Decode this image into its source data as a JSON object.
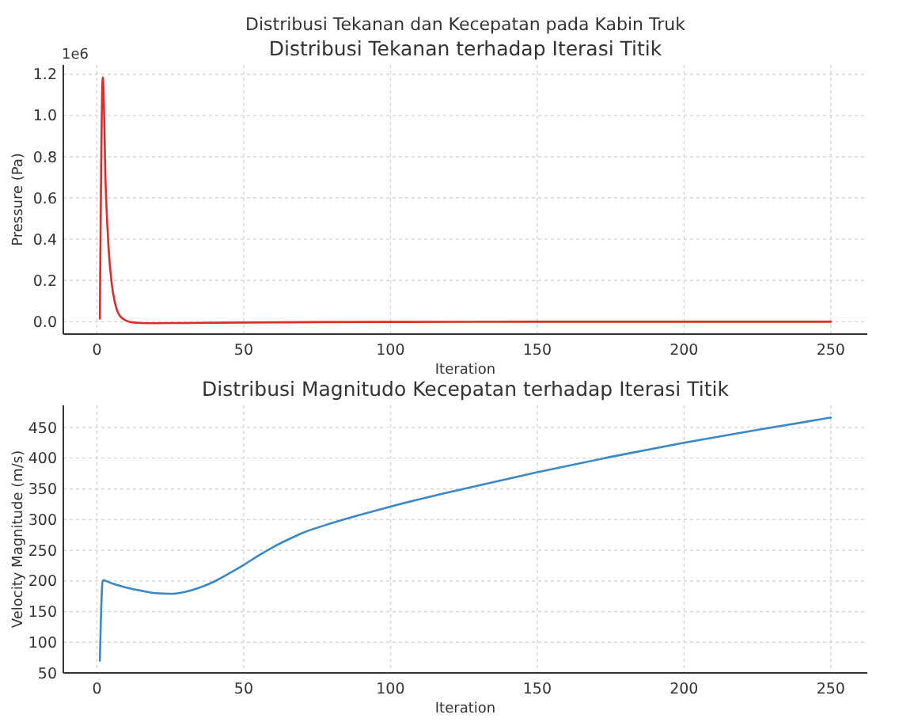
{
  "chart_data": [
    {
      "type": "line",
      "title": "Distribusi Tekanan dan Kecepatan pada Kabin Truk",
      "subtitle": "Distribusi Tekanan terhadap Iterasi Titik",
      "xlabel": "Iteration",
      "ylabel": "Pressure (Pa)",
      "annotations": [
        "1e6"
      ],
      "x": [
        1,
        2,
        3,
        4,
        5,
        6,
        7,
        8,
        10,
        12,
        15,
        20,
        30,
        50,
        75,
        100,
        150,
        200,
        250
      ],
      "series": [
        {
          "color": "#e02b2b",
          "values": [
            0.015,
            1.185,
            0.65,
            0.35,
            0.19,
            0.1,
            0.05,
            0.025,
            0.005,
            -0.003,
            -0.006,
            -0.007,
            -0.006,
            -0.004,
            -0.002,
            -0.001,
            0,
            0,
            0
          ]
        }
      ],
      "xlim": [
        -11.45,
        262.45
      ],
      "xticks": [
        0,
        50,
        100,
        150,
        200,
        250
      ],
      "ylim": [
        -0.06,
        1.245
      ],
      "yticks": [
        {
          "value": 0,
          "label": "0.0"
        },
        0.2,
        0.4,
        0.6,
        0.8,
        {
          "value": 1,
          "label": "1.0"
        },
        1.2
      ],
      "grid": true
    },
    {
      "type": "line",
      "title": "Distribusi Magnitudo Kecepatan terhadap Iterasi Titik",
      "xlabel": "Iteration",
      "ylabel": "Velocity Magnitude (m/s)",
      "x": [
        1,
        2,
        5,
        10,
        15,
        20,
        25,
        30,
        35,
        40,
        45,
        50,
        55,
        60,
        65,
        70,
        80,
        90,
        100,
        125,
        150,
        175,
        200,
        225,
        250
      ],
      "series": [
        {
          "color": "#3a88c5",
          "values": [
            70,
            201,
            196,
            189,
            184,
            180,
            179,
            182,
            189,
            199,
            212,
            226,
            241,
            255,
            267,
            278,
            294,
            308,
            321,
            350,
            377,
            402,
            425,
            446,
            466
          ]
        }
      ],
      "xlim": [
        -11.45,
        262.45
      ],
      "xticks": [
        0,
        50,
        100,
        150,
        200,
        250
      ],
      "ylim": [
        50,
        486
      ],
      "yticks": [
        50,
        100,
        150,
        200,
        250,
        300,
        350,
        400,
        450
      ],
      "grid": true
    }
  ]
}
